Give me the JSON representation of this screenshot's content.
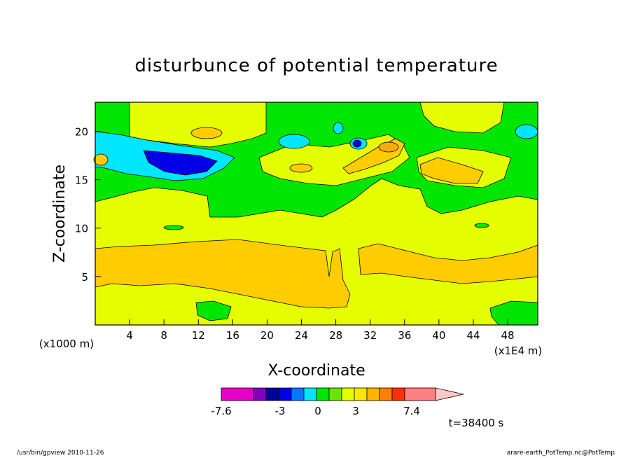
{
  "chart_data": {
    "type": "heatmap",
    "title": "disturbunce of potential temperature",
    "xlabel": "X-coordinate",
    "ylabel": "Z-coordinate",
    "x_unit_left": "(x1000 m)",
    "x_unit_right": "(x1E4 m)",
    "xlim": [
      0,
      51.5
    ],
    "ylim": [
      0,
      23
    ],
    "x_ticks": [
      4,
      8,
      12,
      16,
      20,
      24,
      28,
      32,
      36,
      40,
      44,
      48
    ],
    "y_ticks": [
      5,
      10,
      15,
      20
    ],
    "colorbar": {
      "levels": [
        "-7.6",
        "-3",
        "0",
        "3",
        "7.4"
      ],
      "colors": [
        "#e600c8",
        "#8000c0",
        "#00009a",
        "#0000e6",
        "#0078ff",
        "#00e6ff",
        "#00e600",
        "#66e600",
        "#e6ff00",
        "#ffe600",
        "#ffb400",
        "#ff8000",
        "#ff3000",
        "#ff8080",
        "#ffc8c8"
      ]
    },
    "regions": [
      {
        "level": "green",
        "color": "#00e600"
      },
      {
        "level": "yellow",
        "color": "#e6ff00"
      },
      {
        "level": "light-orange",
        "color": "#ffcc00"
      },
      {
        "level": "orange",
        "color": "#ffaa00"
      },
      {
        "level": "cyan",
        "color": "#00e6ff"
      },
      {
        "level": "blue",
        "color": "#0000e6"
      }
    ],
    "time_label": "t=38400 s"
  },
  "footer": {
    "left": "/usr/bin/gpview   2010-11-26",
    "right": "arare-earth_PotTemp.nc@PotTemp"
  }
}
